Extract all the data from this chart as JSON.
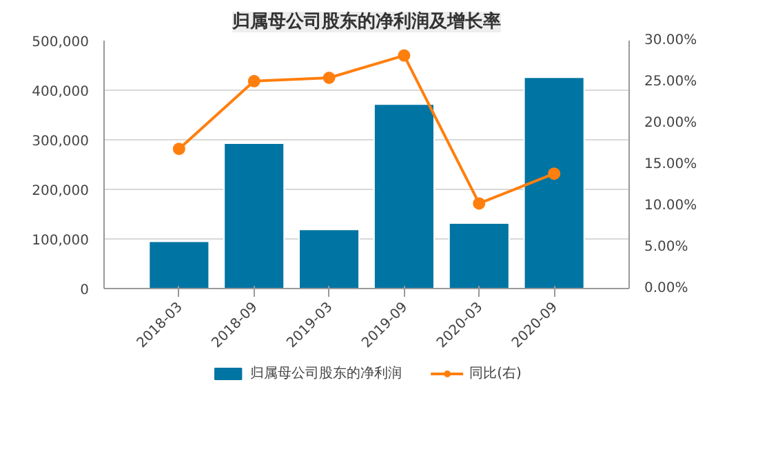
{
  "chart_data": {
    "type": "bar",
    "title": "归属母公司股东的净利润及增长率",
    "categories": [
      "2018-03",
      "2018-09",
      "2019-03",
      "2019-09",
      "2020-03",
      "2020-09"
    ],
    "series": [
      {
        "name": "归属母公司股东的净利润",
        "color": "#0074a2",
        "values": [
          95000,
          293000,
          119000,
          372000,
          132000,
          426000
        ]
      },
      {
        "name": "同比(右)",
        "type": "line",
        "axis": "y2",
        "color": "#ff7f0e",
        "marker": "circle",
        "values": [
          16.9,
          25.1,
          25.5,
          28.2,
          10.3,
          13.9
        ]
      }
    ],
    "ylim": [
      0,
      500000
    ],
    "yticks": [
      {
        "value": 0,
        "label": "0"
      },
      {
        "value": 100000,
        "label": "100,000"
      },
      {
        "value": 200000,
        "label": "200,000"
      },
      {
        "value": 300000,
        "label": "300,000"
      },
      {
        "value": 400000,
        "label": "400,000"
      },
      {
        "value": 500000,
        "label": "500,000"
      }
    ],
    "y2lim": [
      0,
      30
    ],
    "y2ticks": [
      {
        "value": 0,
        "label": "0.00%"
      },
      {
        "value": 5,
        "label": "5.00%"
      },
      {
        "value": 10,
        "label": "10.00%"
      },
      {
        "value": 15,
        "label": "15.00%"
      },
      {
        "value": 20,
        "label": "20.00%"
      },
      {
        "value": 25,
        "label": "25.00%"
      },
      {
        "value": 30,
        "label": "30.00%"
      }
    ],
    "grid": "y",
    "legend": "bottom"
  }
}
